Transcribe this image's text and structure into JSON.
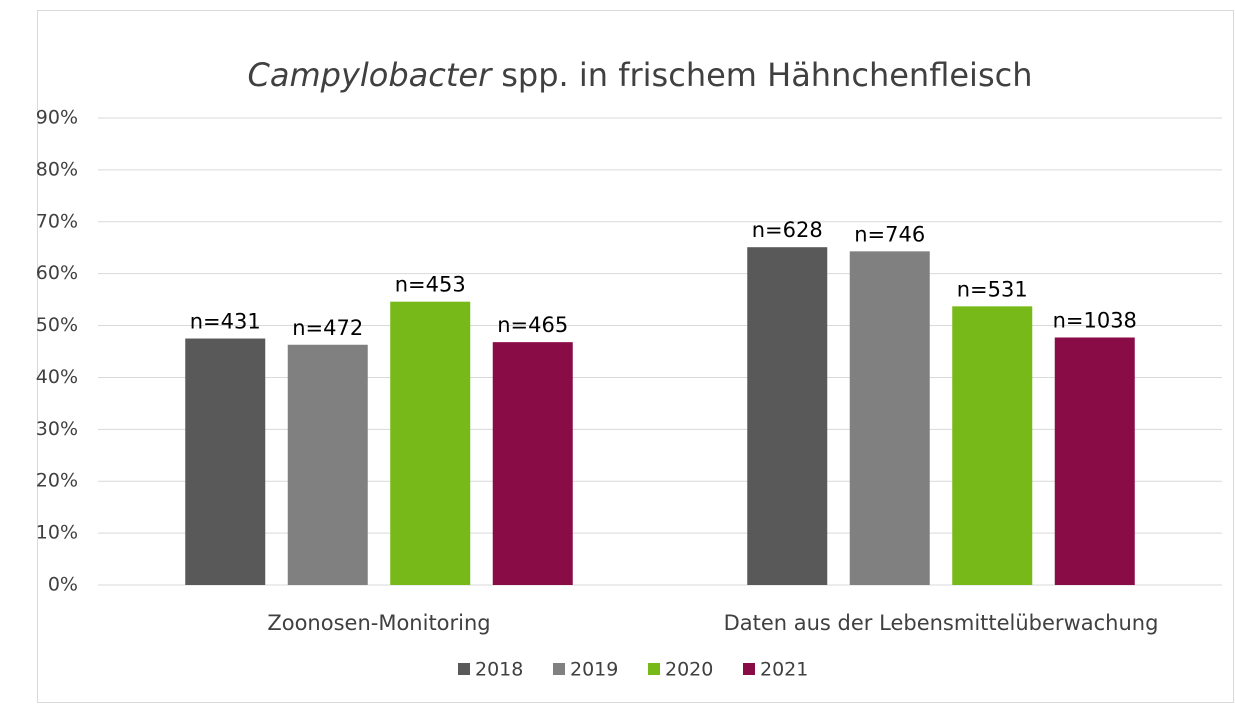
{
  "chart_data": {
    "type": "bar",
    "title": {
      "italic": "Campylobacter",
      "rest": "spp. in frischem Hähnchenfleisch"
    },
    "categories": [
      "Zoonosen-Monitoring",
      "Daten aus der Lebensmittelüberwachung"
    ],
    "series": [
      {
        "name": "2018",
        "color": "#595959",
        "values": [
          47.5,
          65.1
        ],
        "labels": [
          "n=431",
          "n=628"
        ]
      },
      {
        "name": "2019",
        "color": "#808080",
        "values": [
          46.3,
          64.3
        ],
        "labels": [
          "n=472",
          "n=746"
        ]
      },
      {
        "name": "2020",
        "color": "#76b918",
        "values": [
          54.6,
          53.7
        ],
        "labels": [
          "n=453",
          "n=531"
        ]
      },
      {
        "name": "2021",
        "color": "#8a0c47",
        "values": [
          46.8,
          47.7
        ],
        "labels": [
          "n=465",
          "n=1038"
        ]
      }
    ],
    "ylim": [
      0,
      90
    ],
    "yticks": [
      {
        "value": 0,
        "label": "0%"
      },
      {
        "value": 10,
        "label": "10%"
      },
      {
        "value": 20,
        "label": "20%"
      },
      {
        "value": 30,
        "label": "30%"
      },
      {
        "value": 40,
        "label": "40%"
      },
      {
        "value": 50,
        "label": "50%"
      },
      {
        "value": 60,
        "label": "60%"
      },
      {
        "value": 70,
        "label": "70%"
      },
      {
        "value": 80,
        "label": "80%"
      },
      {
        "value": 90,
        "label": "90%"
      }
    ],
    "grid": true,
    "legend": "bottom"
  }
}
